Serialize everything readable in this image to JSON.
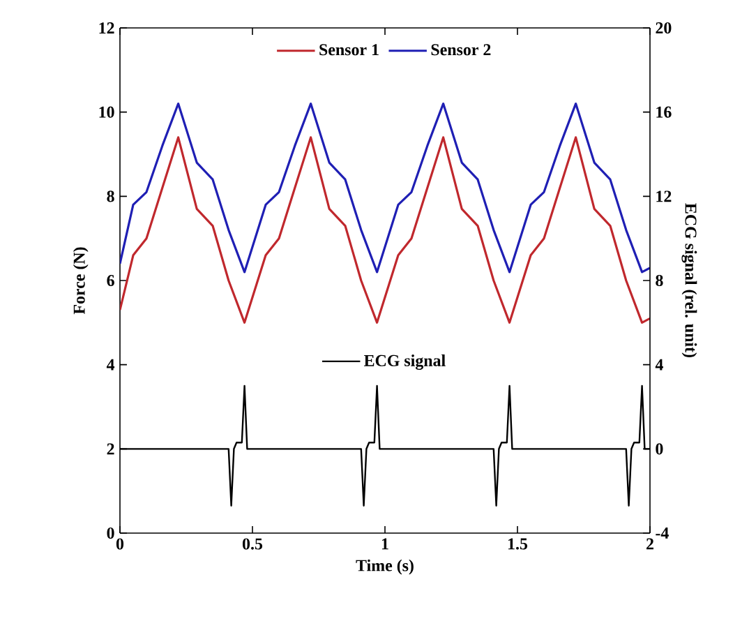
{
  "chart_data": {
    "type": "line",
    "xlabel": "Time (s)",
    "ylabel": "Force (N)",
    "y2label": "ECG signal (rel. unit)",
    "x": [
      0,
      0.05,
      0.1,
      0.16,
      0.22,
      0.29,
      0.35,
      0.41,
      0.47,
      0.55,
      0.6,
      0.66,
      0.72,
      0.79,
      0.85,
      0.91,
      0.97,
      1.05,
      1.1,
      1.16,
      1.22,
      1.29,
      1.35,
      1.41,
      1.47,
      1.55,
      1.6,
      1.66,
      1.72,
      1.79,
      1.85,
      1.91,
      1.97,
      2.0
    ],
    "series": [
      {
        "name": "Sensor 1",
        "color": "#c0282d",
        "values": [
          5.3,
          6.6,
          7.0,
          8.2,
          9.4,
          7.7,
          7.3,
          6.0,
          5.0,
          6.6,
          7.0,
          8.2,
          9.4,
          7.7,
          7.3,
          6.0,
          5.0,
          6.6,
          7.0,
          8.2,
          9.4,
          7.7,
          7.3,
          6.0,
          5.0,
          6.6,
          7.0,
          8.2,
          9.4,
          7.7,
          7.3,
          6.0,
          5.0,
          5.1
        ]
      },
      {
        "name": "Sensor 2",
        "color": "#1f1fb4",
        "values": [
          6.4,
          7.8,
          8.1,
          9.2,
          10.2,
          8.8,
          8.4,
          7.2,
          6.2,
          7.8,
          8.1,
          9.2,
          10.2,
          8.8,
          8.4,
          7.2,
          6.2,
          7.8,
          8.1,
          9.2,
          10.2,
          8.8,
          8.4,
          7.2,
          6.2,
          7.8,
          8.1,
          9.2,
          10.2,
          8.8,
          8.4,
          7.2,
          6.2,
          6.3
        ]
      },
      {
        "name": "ECG signal",
        "color": "#000000",
        "axis": "y2",
        "x": [
          0,
          0.41,
          0.42,
          0.43,
          0.44,
          0.46,
          0.47,
          0.48,
          0.91,
          0.92,
          0.93,
          0.94,
          0.96,
          0.97,
          0.98,
          1.41,
          1.42,
          1.43,
          1.44,
          1.46,
          1.47,
          1.48,
          1.91,
          1.92,
          1.93,
          1.94,
          1.96,
          1.97,
          1.98,
          2.0
        ],
        "values": [
          0,
          0,
          -2.7,
          0,
          0.3,
          0.3,
          3.0,
          0,
          0,
          -2.7,
          0,
          0.3,
          0.3,
          3.0,
          0,
          0,
          -2.7,
          0,
          0.3,
          0.3,
          3.0,
          0,
          0,
          -2.7,
          0,
          0.3,
          0.3,
          3.0,
          0,
          0
        ]
      }
    ],
    "xlim": [
      0,
      2
    ],
    "xticks": [
      0,
      0.5,
      1,
      1.5,
      2
    ],
    "ylim": [
      0,
      12
    ],
    "yticks": [
      0,
      2,
      4,
      6,
      8,
      10,
      12
    ],
    "y2lim": [
      -4,
      20
    ],
    "y2ticks": [
      -4,
      0,
      4,
      8,
      12,
      16,
      20
    ],
    "legend": "top",
    "grid": false,
    "line_style": "solid",
    "marker": "none"
  }
}
